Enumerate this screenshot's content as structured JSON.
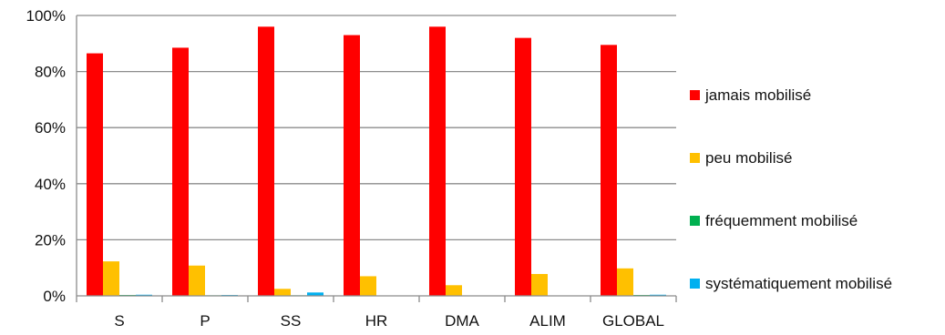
{
  "chart_data": {
    "type": "bar",
    "title": "",
    "xlabel": "",
    "ylabel": "",
    "ylim": [
      0,
      100
    ],
    "y_ticks": [
      0,
      20,
      40,
      60,
      80,
      100
    ],
    "y_tick_labels": [
      "0%",
      "20%",
      "40%",
      "60%",
      "80%",
      "100%"
    ],
    "categories": [
      "S",
      "P",
      "SS",
      "HR",
      "DMA",
      "ALIM",
      "GLOBAL"
    ],
    "grid": true,
    "legend_position": "right",
    "series": [
      {
        "name": "jamais mobilisé",
        "color": "#ff0000",
        "values": [
          86.5,
          88.5,
          96,
          93,
          96,
          92,
          89.5
        ]
      },
      {
        "name": "peu mobilisé",
        "color": "#ffc000",
        "values": [
          12.3,
          10.8,
          2.5,
          7,
          3.8,
          7.8,
          9.8
        ]
      },
      {
        "name": "fréquemment mobilisé",
        "color": "#00b050",
        "values": [
          0.3,
          0.2,
          0.2,
          0,
          0,
          0,
          0.3
        ]
      },
      {
        "name": "systématiquement mobilisé",
        "color": "#00b0f0",
        "values": [
          0.4,
          0.3,
          1.2,
          0,
          0,
          0,
          0.4
        ]
      }
    ]
  }
}
